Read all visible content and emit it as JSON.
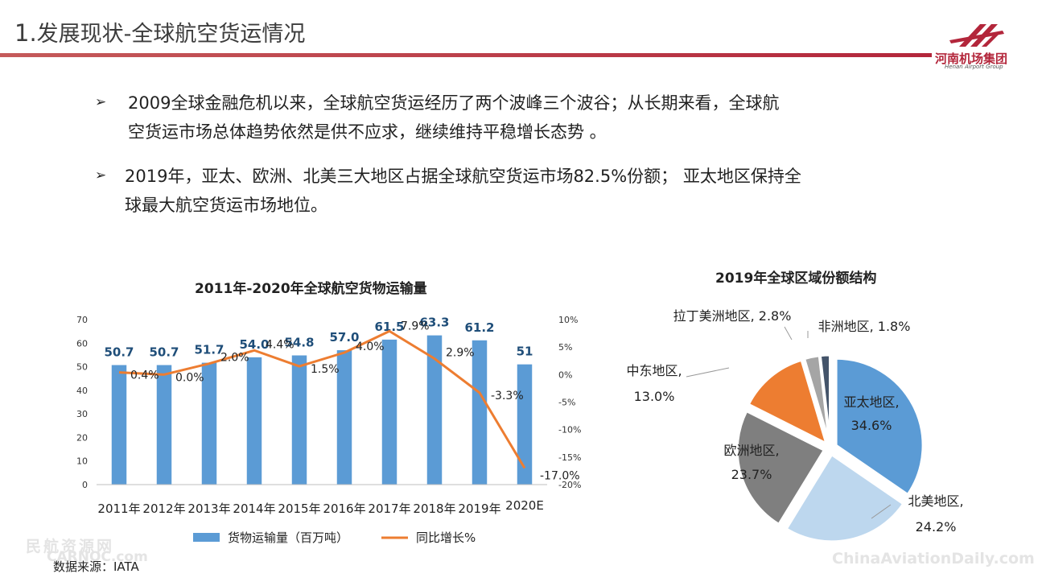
{
  "header": {
    "title_num": "1.",
    "title_main": "发展现状",
    "title_sub": "-全球航空货运情况",
    "logo_cn": "河南机场集团",
    "logo_en": "Henan Airport Group"
  },
  "bullets": [
    {
      "line1": "2009全球金融危机以来，全球航空货运经历了两个波峰三个波谷；从长期来看，全球航",
      "line2": "空货运市场总体趋势依然是供不应求，继续维持平稳增长态势 。"
    },
    {
      "line1": "2019年，亚太、欧洲、北美三大地区占据全球航空货运市场82.5%份额； 亚太地区保持全",
      "line2": "球最大航空货运市场地位。"
    }
  ],
  "colors": {
    "bar": "#5b9bd5",
    "line": "#ed7d31",
    "value_label": "#1f4e79",
    "accent": "#b3263b"
  },
  "chart_data": [
    {
      "type": "bar",
      "title": "2011年-2020年全球航空货物运输量",
      "categories": [
        "2011年",
        "2012年",
        "2013年",
        "2014年",
        "2015年",
        "2016年",
        "2017年",
        "2018年",
        "2019年",
        "2020E"
      ],
      "series": [
        {
          "name": "货物运输量（百万吨）",
          "type": "bar",
          "axis": "left",
          "values": [
            50.7,
            50.7,
            51.7,
            54.0,
            54.8,
            57.0,
            61.5,
            63.3,
            61.2,
            51
          ],
          "labels": [
            "50.7",
            "50.7",
            "51.7",
            "54.0",
            "54.8",
            "57.0",
            "61.5",
            "63.3",
            "61.2",
            "51"
          ]
        },
        {
          "name": "同比增长%",
          "type": "line",
          "axis": "right",
          "values": [
            0.4,
            0.0,
            2.0,
            4.4,
            1.5,
            4.0,
            7.9,
            2.9,
            -3.3,
            -17.0
          ],
          "labels": [
            "0.4%",
            "0.0%",
            "2.0%",
            "4.4%",
            "1.5%",
            "4.0%",
            "7.9%",
            "2.9%",
            "-3.3%",
            "-17.0%"
          ]
        }
      ],
      "ylim": [
        0,
        70
      ],
      "yticks": [
        "0",
        "10",
        "20",
        "30",
        "40",
        "50",
        "60",
        "70"
      ],
      "y2lim": [
        -20,
        10
      ],
      "y2ticks": [
        "10%",
        "5%",
        "0%",
        "-5%",
        "-10%",
        "-15%",
        "-20%"
      ],
      "legend": "bottom"
    },
    {
      "type": "pie",
      "title": "2019年全球区域份额结构",
      "slices": [
        {
          "name": "亚太地区,",
          "value": 34.6,
          "label": "34.6%",
          "color": "#5b9bd5"
        },
        {
          "name": "北美地区,",
          "value": 24.2,
          "label": "24.2%",
          "color": "#bdd7ee"
        },
        {
          "name": "欧洲地区,",
          "value": 23.7,
          "label": "23.7%",
          "color": "#7f7f7f"
        },
        {
          "name": "中东地区,",
          "value": 13.0,
          "label": "13.0%",
          "color": "#ed7d31"
        },
        {
          "name": "拉丁美洲地区,",
          "value": 2.8,
          "label": "2.8%",
          "color": "#a5a5a5"
        },
        {
          "name": "非洲地区,",
          "value": 1.8,
          "label": "1.8%",
          "color": "#44546a"
        }
      ]
    }
  ],
  "source": "数据来源：IATA",
  "watermarks": {
    "left_cn": "民航资源网",
    "left_en": "CARNOC.com",
    "right": "ChinaAviationDaily.com"
  }
}
